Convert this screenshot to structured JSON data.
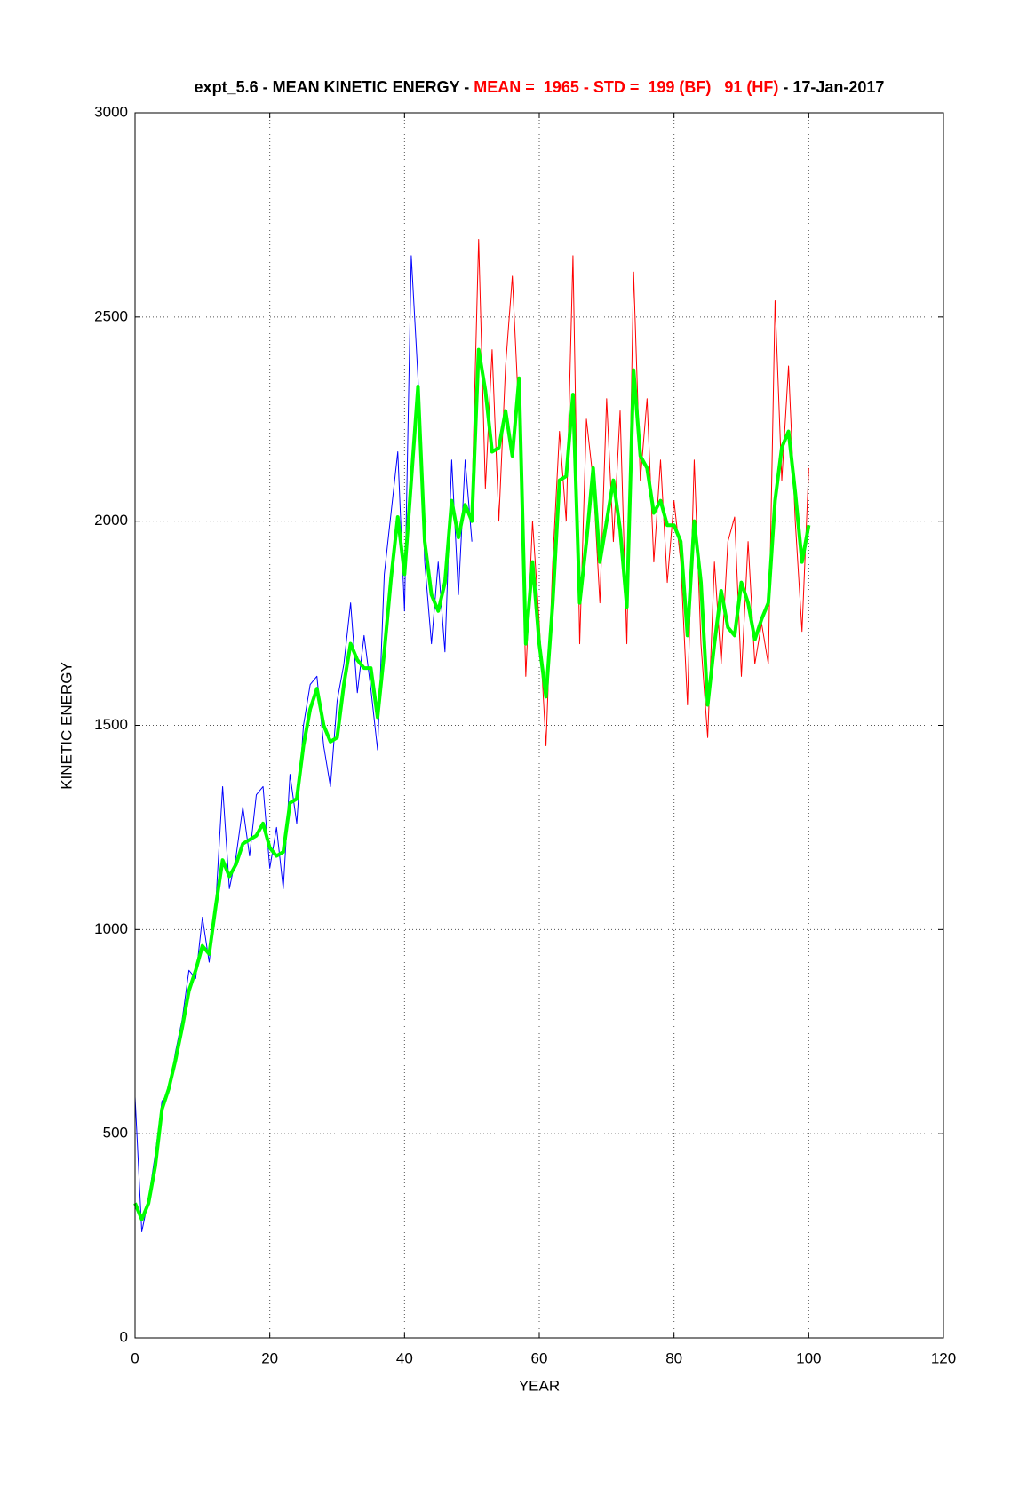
{
  "chart_data": {
    "type": "line",
    "title_parts": [
      {
        "text": "expt_5.6 - MEAN KINETIC ENERGY - ",
        "color": "#000000"
      },
      {
        "text": "MEAN =  1965 - STD =  199 (BF)   91 (HF)",
        "color": "#ff0000"
      },
      {
        "text": " - 17-Jan-2017",
        "color": "#000000"
      }
    ],
    "x_label": "YEAR",
    "y_label": "KINETIC ENERGY",
    "xlim": [
      0,
      120
    ],
    "xticks": [
      0,
      20,
      40,
      60,
      80,
      100,
      120
    ],
    "ylim": [
      0,
      3000
    ],
    "yticks": [
      0,
      500,
      1000,
      1500,
      2000,
      2500,
      3000
    ],
    "grid": true,
    "series": [
      {
        "color": "#0000ff",
        "width": 1,
        "x": [
          0,
          1,
          2,
          3,
          4,
          5,
          6,
          7,
          8,
          9,
          10,
          11,
          12,
          13,
          14,
          15,
          16,
          17,
          18,
          19,
          20,
          21,
          22,
          23,
          24,
          25,
          26,
          27,
          28,
          29,
          30,
          31,
          32,
          33,
          34,
          35,
          36,
          37,
          38,
          39,
          40,
          41,
          42,
          43,
          44,
          45,
          46,
          47,
          48,
          49,
          50
        ],
        "values": [
          590,
          260,
          340,
          450,
          580,
          600,
          700,
          780,
          900,
          880,
          1030,
          920,
          1070,
          1350,
          1100,
          1180,
          1300,
          1180,
          1330,
          1350,
          1150,
          1250,
          1100,
          1380,
          1260,
          1500,
          1600,
          1620,
          1450,
          1350,
          1560,
          1650,
          1800,
          1580,
          1720,
          1590,
          1440,
          1870,
          2020,
          2170,
          1780,
          2650,
          2350,
          1900,
          1700,
          1900,
          1680,
          2150,
          1820,
          2150,
          1950
        ]
      },
      {
        "color": "#ff0000",
        "width": 1,
        "x": [
          50,
          51,
          52,
          53,
          54,
          55,
          56,
          57,
          58,
          59,
          60,
          61,
          62,
          63,
          64,
          65,
          66,
          67,
          68,
          69,
          70,
          71,
          72,
          73,
          74,
          75,
          76,
          77,
          78,
          79,
          80,
          81,
          82,
          83,
          84,
          85,
          86,
          87,
          88,
          89,
          90,
          91,
          92,
          93,
          94,
          95,
          96,
          97,
          98,
          99,
          100
        ],
        "values": [
          2050,
          2690,
          2080,
          2420,
          2000,
          2380,
          2600,
          2250,
          1620,
          2000,
          1750,
          1450,
          1900,
          2220,
          2000,
          2650,
          1700,
          2250,
          2100,
          1800,
          2300,
          1950,
          2270,
          1700,
          2610,
          2100,
          2300,
          1900,
          2150,
          1850,
          2050,
          1900,
          1550,
          2150,
          1700,
          1470,
          1900,
          1650,
          1950,
          2010,
          1620,
          1950,
          1650,
          1750,
          1650,
          2540,
          2100,
          2380,
          2000,
          1730,
          2130
        ]
      },
      {
        "color": "#00ff00",
        "width": 4,
        "x": [
          0,
          1,
          2,
          3,
          4,
          5,
          6,
          7,
          8,
          9,
          10,
          11,
          12,
          13,
          14,
          15,
          16,
          17,
          18,
          19,
          20,
          21,
          22,
          23,
          24,
          25,
          26,
          27,
          28,
          29,
          30,
          31,
          32,
          33,
          34,
          35,
          36,
          37,
          38,
          39,
          40,
          41,
          42,
          43,
          44,
          45,
          46,
          47,
          48,
          49,
          50,
          51,
          52,
          53,
          54,
          55,
          56,
          57,
          58,
          59,
          60,
          61,
          62,
          63,
          64,
          65,
          66,
          67,
          68,
          69,
          70,
          71,
          72,
          73,
          74,
          75,
          76,
          77,
          78,
          79,
          80,
          81,
          82,
          83,
          84,
          85,
          86,
          87,
          88,
          89,
          90,
          91,
          92,
          93,
          94,
          95,
          96,
          97,
          98,
          99,
          100
        ],
        "values": [
          330,
          290,
          330,
          420,
          560,
          610,
          680,
          760,
          850,
          900,
          960,
          940,
          1060,
          1170,
          1130,
          1160,
          1210,
          1220,
          1230,
          1260,
          1200,
          1180,
          1190,
          1310,
          1320,
          1450,
          1540,
          1590,
          1500,
          1460,
          1470,
          1600,
          1700,
          1660,
          1640,
          1640,
          1520,
          1680,
          1860,
          2010,
          1870,
          2100,
          2330,
          1950,
          1820,
          1780,
          1850,
          2050,
          1960,
          2040,
          2000,
          2420,
          2320,
          2170,
          2180,
          2270,
          2160,
          2350,
          1700,
          1900,
          1700,
          1570,
          1800,
          2100,
          2110,
          2310,
          1800,
          1950,
          2130,
          1900,
          2000,
          2100,
          1980,
          1790,
          2370,
          2160,
          2130,
          2020,
          2050,
          1990,
          1990,
          1950,
          1720,
          2000,
          1850,
          1550,
          1700,
          1830,
          1740,
          1720,
          1850,
          1800,
          1710,
          1760,
          1800,
          2050,
          2180,
          2220,
          2070,
          1900,
          1990
        ]
      }
    ]
  }
}
